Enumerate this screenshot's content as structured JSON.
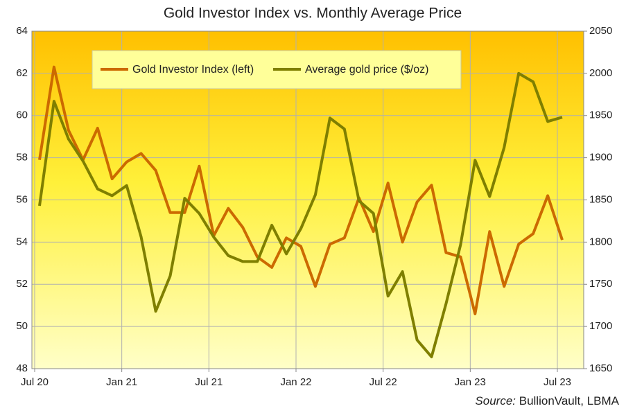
{
  "chart_data": {
    "type": "line",
    "title": "Gold Investor Index vs. Monthly Average Price",
    "source_label": "Source:",
    "source": "BullionVault, LBMA",
    "categories": [
      "Jul 20",
      null,
      null,
      null,
      null,
      null,
      "Jan 21",
      null,
      null,
      null,
      null,
      null,
      "Jul 21",
      null,
      null,
      null,
      null,
      null,
      "Jan 22",
      null,
      null,
      null,
      null,
      null,
      "Jul 22",
      null,
      null,
      null,
      null,
      null,
      "Jan 23",
      null,
      null,
      null,
      null,
      null,
      "Jul 23"
    ],
    "series": [
      {
        "name": "Gold Investor Index (left)",
        "color": "#cc6a00",
        "axis": "y",
        "values": [
          57.9,
          62.3,
          59.3,
          57.9,
          59.4,
          57.0,
          57.8,
          58.2,
          57.4,
          55.4,
          55.4,
          57.6,
          54.3,
          55.6,
          54.7,
          53.3,
          52.8,
          54.2,
          53.8,
          51.9,
          53.9,
          54.2,
          56.1,
          54.5,
          56.8,
          54.0,
          55.9,
          56.7,
          53.5,
          53.3,
          50.6,
          54.5,
          51.9,
          53.9,
          54.4,
          56.2,
          54.1
        ]
      },
      {
        "name": "Average gold price ($/oz)",
        "color": "#7f7f00",
        "axis": "y2",
        "values": [
          1843,
          1967,
          1922,
          1896,
          1863,
          1855,
          1867,
          1806,
          1718,
          1760,
          1852,
          1834,
          1806,
          1784,
          1777,
          1777,
          1820,
          1786,
          1816,
          1856,
          1947,
          1934,
          1849,
          1834,
          1736,
          1765,
          1684,
          1664,
          1727,
          1797,
          1897,
          1854,
          1912,
          2000,
          1990,
          1943,
          1948
        ]
      }
    ],
    "ylim": [
      48,
      64
    ],
    "yticks": [
      48,
      50,
      52,
      54,
      56,
      58,
      60,
      62,
      64
    ],
    "y2lim": [
      1650,
      2050
    ],
    "y2ticks": [
      1650,
      1700,
      1750,
      1800,
      1850,
      1900,
      1950,
      2000,
      2050
    ],
    "grid": true
  }
}
